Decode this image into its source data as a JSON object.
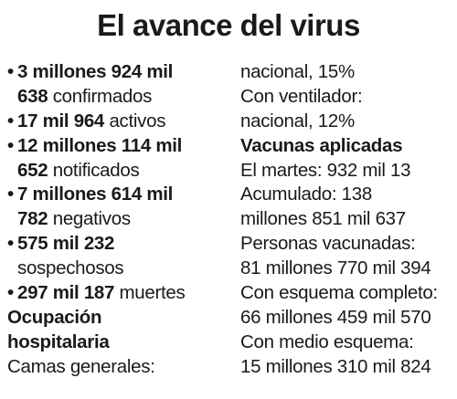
{
  "title": "El avance del virus",
  "left": {
    "confirmados": {
      "bullet": "•",
      "num_a": "3 millones 924 mil",
      "num_b": "638",
      "label": "confirmados"
    },
    "activos": {
      "bullet": "•",
      "num": "17 mil 964",
      "label": "activos"
    },
    "notificados": {
      "bullet": "•",
      "num_a": "12 millones 114 mil",
      "num_b": "652",
      "label": "notificados"
    },
    "negativos": {
      "bullet": "•",
      "num_a": "7 millones 614 mil",
      "num_b": "782",
      "label": "negativos"
    },
    "sospechosos": {
      "bullet": "•",
      "num": "575 mil 232",
      "label": "sospechosos"
    },
    "muertes": {
      "bullet": "•",
      "num": "297 mil 187",
      "label": "muertes"
    },
    "ocupacion_heading_a": "Ocupación",
    "ocupacion_heading_b": "hospitalaria",
    "camas_generales": "Camas generales:"
  },
  "right": {
    "camas_nacional": "nacional, 15%",
    "ventilador": "Con ventilador:",
    "ventilador_nacional": "nacional, 12%",
    "vacunas_heading": "Vacunas aplicadas",
    "martes": "El martes: 932 mil 13",
    "acumulado_a": "Acumulado: 138",
    "acumulado_b": "millones 851 mil 637",
    "personas_a": "Personas vacunadas:",
    "personas_b": "81 millones 770 mil 394",
    "completo_a": "Con esquema completo:",
    "completo_b": "66 millones 459 mil 570",
    "medio_a": "Con medio esquema:",
    "medio_b": "15 millones 310 mil 824"
  }
}
